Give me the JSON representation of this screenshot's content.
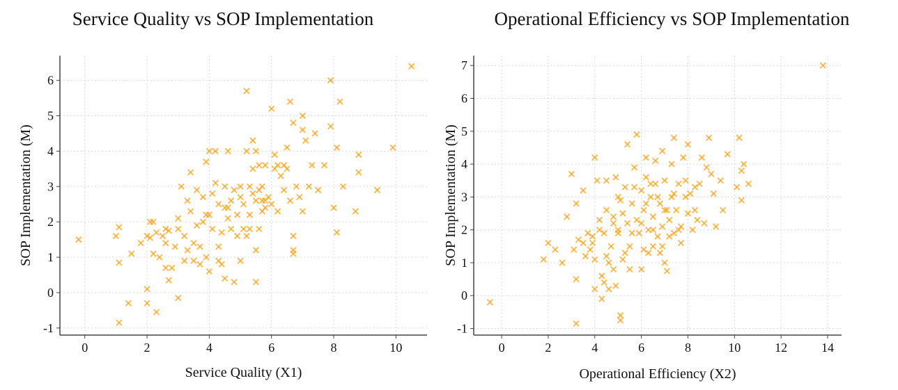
{
  "chart_data": [
    {
      "type": "scatter",
      "title": "Service Quality vs SOP Implementation",
      "xlabel": "Service Quality (X1)",
      "ylabel": "SOP Implementation (M)",
      "xlim": [
        -0.8,
        11
      ],
      "ylim": [
        -1.2,
        6.7
      ],
      "xticks": [
        0,
        2,
        4,
        6,
        8,
        10
      ],
      "yticks": [
        -1,
        0,
        1,
        2,
        3,
        4,
        5,
        6
      ],
      "grid": true,
      "marker": "x",
      "color": "#F5A623",
      "points": [
        [
          -0.2,
          1.5
        ],
        [
          1.0,
          1.6
        ],
        [
          1.1,
          0.85
        ],
        [
          1.1,
          1.85
        ],
        [
          1.4,
          -0.3
        ],
        [
          1.5,
          1.1
        ],
        [
          1.1,
          -0.85
        ],
        [
          1.8,
          1.4
        ],
        [
          2.0,
          1.6
        ],
        [
          2.1,
          1.55
        ],
        [
          2.1,
          2.0
        ],
        [
          2.2,
          2.0
        ],
        [
          2.2,
          1.1
        ],
        [
          2.3,
          1.7
        ],
        [
          2.4,
          1.0
        ],
        [
          2.5,
          1.6
        ],
        [
          2.6,
          1.8
        ],
        [
          2.6,
          1.4
        ],
        [
          2.6,
          0.7
        ],
        [
          2.7,
          1.75
        ],
        [
          2.7,
          0.35
        ],
        [
          2.8,
          0.7
        ],
        [
          2.0,
          0.1
        ],
        [
          2.0,
          -0.3
        ],
        [
          2.3,
          -0.55
        ],
        [
          3.0,
          -0.15
        ],
        [
          2.9,
          1.3
        ],
        [
          3.0,
          1.8
        ],
        [
          3.0,
          2.1
        ],
        [
          3.1,
          3.0
        ],
        [
          3.2,
          1.6
        ],
        [
          3.2,
          0.9
        ],
        [
          3.3,
          2.6
        ],
        [
          3.3,
          1.2
        ],
        [
          3.4,
          3.4
        ],
        [
          3.4,
          2.3
        ],
        [
          3.5,
          1.4
        ],
        [
          3.5,
          0.9
        ],
        [
          3.6,
          2.9
        ],
        [
          3.6,
          1.9
        ],
        [
          3.7,
          1.3
        ],
        [
          3.7,
          0.8
        ],
        [
          3.8,
          2.7
        ],
        [
          3.8,
          2.0
        ],
        [
          3.9,
          1.0
        ],
        [
          3.9,
          3.7
        ],
        [
          4.0,
          4.0
        ],
        [
          4.0,
          2.2
        ],
        [
          4.0,
          0.6
        ],
        [
          4.1,
          2.8
        ],
        [
          4.1,
          1.8
        ],
        [
          4.2,
          3.1
        ],
        [
          4.2,
          4.0
        ],
        [
          4.3,
          1.3
        ],
        [
          4.3,
          2.5
        ],
        [
          4.4,
          0.8
        ],
        [
          4.4,
          1.7
        ],
        [
          4.5,
          2.4
        ],
        [
          4.5,
          0.4
        ],
        [
          4.5,
          3.0
        ],
        [
          4.6,
          4.0
        ],
        [
          4.6,
          2.1
        ],
        [
          4.7,
          1.8
        ],
        [
          4.7,
          2.6
        ],
        [
          4.8,
          2.9
        ],
        [
          4.8,
          0.3
        ],
        [
          4.9,
          1.6
        ],
        [
          4.9,
          2.2
        ],
        [
          5.0,
          2.7
        ],
        [
          5.0,
          3.0
        ],
        [
          5.0,
          0.9
        ],
        [
          5.1,
          1.8
        ],
        [
          5.1,
          2.5
        ],
        [
          5.2,
          5.7
        ],
        [
          5.2,
          4.0
        ],
        [
          5.2,
          1.6
        ],
        [
          5.3,
          3.0
        ],
        [
          5.3,
          2.2
        ],
        [
          5.4,
          4.3
        ],
        [
          5.4,
          3.5
        ],
        [
          5.4,
          2.8
        ],
        [
          5.5,
          2.6
        ],
        [
          5.5,
          1.2
        ],
        [
          5.5,
          0.3
        ],
        [
          5.6,
          3.6
        ],
        [
          5.6,
          2.9
        ],
        [
          5.6,
          1.8
        ],
        [
          5.7,
          2.6
        ],
        [
          5.7,
          2.3
        ],
        [
          5.8,
          3.6
        ],
        [
          5.8,
          2.4
        ],
        [
          5.9,
          2.7
        ],
        [
          6.0,
          5.2
        ],
        [
          6.0,
          2.5
        ],
        [
          6.1,
          3.9
        ],
        [
          6.1,
          3.5
        ],
        [
          6.2,
          2.3
        ],
        [
          6.3,
          3.3
        ],
        [
          6.4,
          2.9
        ],
        [
          6.5,
          3.5
        ],
        [
          6.6,
          5.4
        ],
        [
          6.6,
          2.6
        ],
        [
          6.7,
          1.6
        ],
        [
          6.7,
          1.2
        ],
        [
          6.7,
          4.8
        ],
        [
          6.8,
          3.0
        ],
        [
          6.9,
          2.7
        ],
        [
          7.0,
          4.6
        ],
        [
          7.0,
          2.3
        ],
        [
          7.1,
          4.3
        ],
        [
          7.2,
          3.0
        ],
        [
          7.3,
          3.6
        ],
        [
          7.4,
          4.5
        ],
        [
          7.5,
          2.9
        ],
        [
          7.7,
          3.6
        ],
        [
          7.9,
          6.0
        ],
        [
          7.9,
          4.7
        ],
        [
          8.0,
          2.4
        ],
        [
          8.1,
          4.1
        ],
        [
          8.1,
          1.7
        ],
        [
          8.2,
          5.4
        ],
        [
          8.3,
          3.0
        ],
        [
          8.7,
          2.3
        ],
        [
          8.8,
          3.4
        ],
        [
          8.8,
          3.9
        ],
        [
          9.4,
          2.9
        ],
        [
          9.9,
          4.1
        ],
        [
          10.5,
          6.4
        ],
        [
          6.7,
          1.1
        ],
        [
          5.3,
          1.8
        ],
        [
          4.6,
          2.4
        ],
        [
          3.9,
          2.2
        ],
        [
          4.3,
          0.9
        ],
        [
          6.4,
          3.6
        ],
        [
          5.8,
          2.6
        ],
        [
          5.7,
          3.0
        ],
        [
          7.0,
          5.0
        ],
        [
          6.5,
          4.1
        ],
        [
          5.5,
          4.0
        ],
        [
          6.2,
          3.6
        ]
      ]
    },
    {
      "type": "scatter",
      "title": "Operational Efficiency vs SOP Implementation",
      "xlabel": "Operational Efficiency (X2)",
      "ylabel": "SOP Implementation (M)",
      "xlim": [
        -1.2,
        14.6
      ],
      "ylim": [
        -1.2,
        7.3
      ],
      "xticks": [
        0,
        2,
        4,
        6,
        8,
        10,
        12,
        14
      ],
      "yticks": [
        -1,
        0,
        1,
        2,
        3,
        4,
        5,
        6,
        7
      ],
      "grid": true,
      "marker": "x",
      "color": "#F5A623",
      "points": [
        [
          -0.5,
          -0.2
        ],
        [
          1.8,
          1.1
        ],
        [
          2.0,
          1.6
        ],
        [
          2.3,
          1.4
        ],
        [
          2.6,
          1.0
        ],
        [
          2.8,
          2.4
        ],
        [
          3.0,
          3.7
        ],
        [
          3.1,
          1.4
        ],
        [
          3.2,
          2.8
        ],
        [
          3.2,
          0.5
        ],
        [
          3.2,
          -0.85
        ],
        [
          3.3,
          1.7
        ],
        [
          3.5,
          1.6
        ],
        [
          3.5,
          3.2
        ],
        [
          3.6,
          1.2
        ],
        [
          3.7,
          1.9
        ],
        [
          3.8,
          1.4
        ],
        [
          3.9,
          1.8
        ],
        [
          4.0,
          4.2
        ],
        [
          4.0,
          1.1
        ],
        [
          4.0,
          0.2
        ],
        [
          4.1,
          3.5
        ],
        [
          4.2,
          2.0
        ],
        [
          4.3,
          0.6
        ],
        [
          4.3,
          -0.1
        ],
        [
          4.4,
          1.9
        ],
        [
          4.4,
          0.4
        ],
        [
          4.5,
          1.2
        ],
        [
          4.5,
          3.5
        ],
        [
          4.6,
          0.2
        ],
        [
          4.7,
          1.5
        ],
        [
          4.8,
          2.4
        ],
        [
          4.8,
          0.8
        ],
        [
          4.9,
          3.6
        ],
        [
          4.9,
          0.3
        ],
        [
          5.0,
          1.9
        ],
        [
          5.0,
          3.0
        ],
        [
          5.1,
          -0.6
        ],
        [
          5.1,
          -0.75
        ],
        [
          5.2,
          2.5
        ],
        [
          5.2,
          1.1
        ],
        [
          5.3,
          3.3
        ],
        [
          5.4,
          4.6
        ],
        [
          5.4,
          2.2
        ],
        [
          5.5,
          1.5
        ],
        [
          5.5,
          0.8
        ],
        [
          5.6,
          2.8
        ],
        [
          5.7,
          3.9
        ],
        [
          5.8,
          4.9
        ],
        [
          5.8,
          2.3
        ],
        [
          5.9,
          1.9
        ],
        [
          6.0,
          3.2
        ],
        [
          6.0,
          0.8
        ],
        [
          6.1,
          2.6
        ],
        [
          6.1,
          1.4
        ],
        [
          6.2,
          4.2
        ],
        [
          6.2,
          3.6
        ],
        [
          6.3,
          2.0
        ],
        [
          6.3,
          1.3
        ],
        [
          6.4,
          3.0
        ],
        [
          6.5,
          2.4
        ],
        [
          6.5,
          1.5
        ],
        [
          6.6,
          4.1
        ],
        [
          6.6,
          3.4
        ],
        [
          6.7,
          1.8
        ],
        [
          6.8,
          2.8
        ],
        [
          6.8,
          1.3
        ],
        [
          6.9,
          4.4
        ],
        [
          6.9,
          2.1
        ],
        [
          7.0,
          3.5
        ],
        [
          7.0,
          1.0
        ],
        [
          7.1,
          2.6
        ],
        [
          7.1,
          0.75
        ],
        [
          7.2,
          1.8
        ],
        [
          7.2,
          2.3
        ],
        [
          7.3,
          4.0
        ],
        [
          7.3,
          3.0
        ],
        [
          7.4,
          4.8
        ],
        [
          7.4,
          1.9
        ],
        [
          7.5,
          2.6
        ],
        [
          7.6,
          3.4
        ],
        [
          7.7,
          2.1
        ],
        [
          7.7,
          1.6
        ],
        [
          7.8,
          4.2
        ],
        [
          7.9,
          3.0
        ],
        [
          8.0,
          4.6
        ],
        [
          8.0,
          2.5
        ],
        [
          8.1,
          3.1
        ],
        [
          8.2,
          2.0
        ],
        [
          8.3,
          3.3
        ],
        [
          8.4,
          2.3
        ],
        [
          8.5,
          3.4
        ],
        [
          8.6,
          4.2
        ],
        [
          8.7,
          2.2
        ],
        [
          8.9,
          4.8
        ],
        [
          9.0,
          3.7
        ],
        [
          9.1,
          3.1
        ],
        [
          9.2,
          2.1
        ],
        [
          9.4,
          3.5
        ],
        [
          9.5,
          2.6
        ],
        [
          9.7,
          4.3
        ],
        [
          10.1,
          3.3
        ],
        [
          10.2,
          4.8
        ],
        [
          10.3,
          2.9
        ],
        [
          10.3,
          3.8
        ],
        [
          10.4,
          4.0
        ],
        [
          10.6,
          3.4
        ],
        [
          13.8,
          7.0
        ],
        [
          4.2,
          2.3
        ],
        [
          5.6,
          1.9
        ],
        [
          6.7,
          3.0
        ],
        [
          7.6,
          2.0
        ],
        [
          8.3,
          2.6
        ],
        [
          5.0,
          2.0
        ],
        [
          6.0,
          2.2
        ],
        [
          4.6,
          1.0
        ],
        [
          7.0,
          2.6
        ],
        [
          6.4,
          3.4
        ],
        [
          5.3,
          1.3
        ],
        [
          4.8,
          2.2
        ],
        [
          7.9,
          3.5
        ],
        [
          6.9,
          1.5
        ],
        [
          5.7,
          3.3
        ],
        [
          6.2,
          2.8
        ],
        [
          7.4,
          3.1
        ],
        [
          4.5,
          2.6
        ],
        [
          3.9,
          1.6
        ],
        [
          8.8,
          3.9
        ],
        [
          6.5,
          2.0
        ],
        [
          5.1,
          2.9
        ]
      ]
    }
  ]
}
